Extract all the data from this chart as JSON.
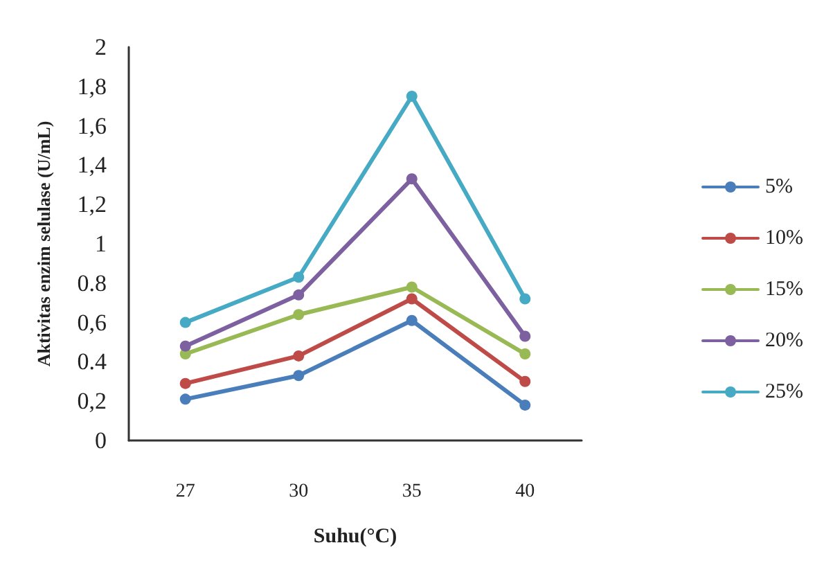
{
  "chart_data": {
    "type": "line",
    "xlabel": "Suhu(°C)",
    "ylabel": "Aktivitas enzim selulase (U/mL)",
    "categories": [
      "27",
      "30",
      "35",
      "40"
    ],
    "series": [
      {
        "name": "5%",
        "color": "#4a7ebb",
        "values": [
          0.21,
          0.33,
          0.61,
          0.18
        ]
      },
      {
        "name": "10%",
        "color": "#be4b48",
        "values": [
          0.29,
          0.43,
          0.72,
          0.3
        ]
      },
      {
        "name": "15%",
        "color": "#98b954",
        "values": [
          0.44,
          0.64,
          0.78,
          0.44
        ]
      },
      {
        "name": "20%",
        "color": "#7d60a0",
        "values": [
          0.48,
          0.74,
          1.33,
          0.53
        ]
      },
      {
        "name": "25%",
        "color": "#46aac5",
        "values": [
          0.6,
          0.83,
          1.75,
          0.72
        ]
      }
    ],
    "ylim": [
      0,
      2
    ],
    "yticks": [
      0,
      {
        "value": 0.2,
        "label": "0,2"
      },
      {
        "value": 0.4,
        "label": "0.4"
      },
      {
        "value": 0.6,
        "label": "0,6"
      },
      {
        "value": 0.8,
        "label": "0.8"
      },
      1,
      {
        "value": 1.2,
        "label": "1,2"
      },
      {
        "value": 1.4,
        "label": "1,4"
      },
      {
        "value": 1.6,
        "label": "1,6"
      },
      {
        "value": 1.8,
        "label": "1,8"
      },
      2
    ],
    "grid": false,
    "legend": "right",
    "marker": "circle",
    "line_style": "solid"
  }
}
